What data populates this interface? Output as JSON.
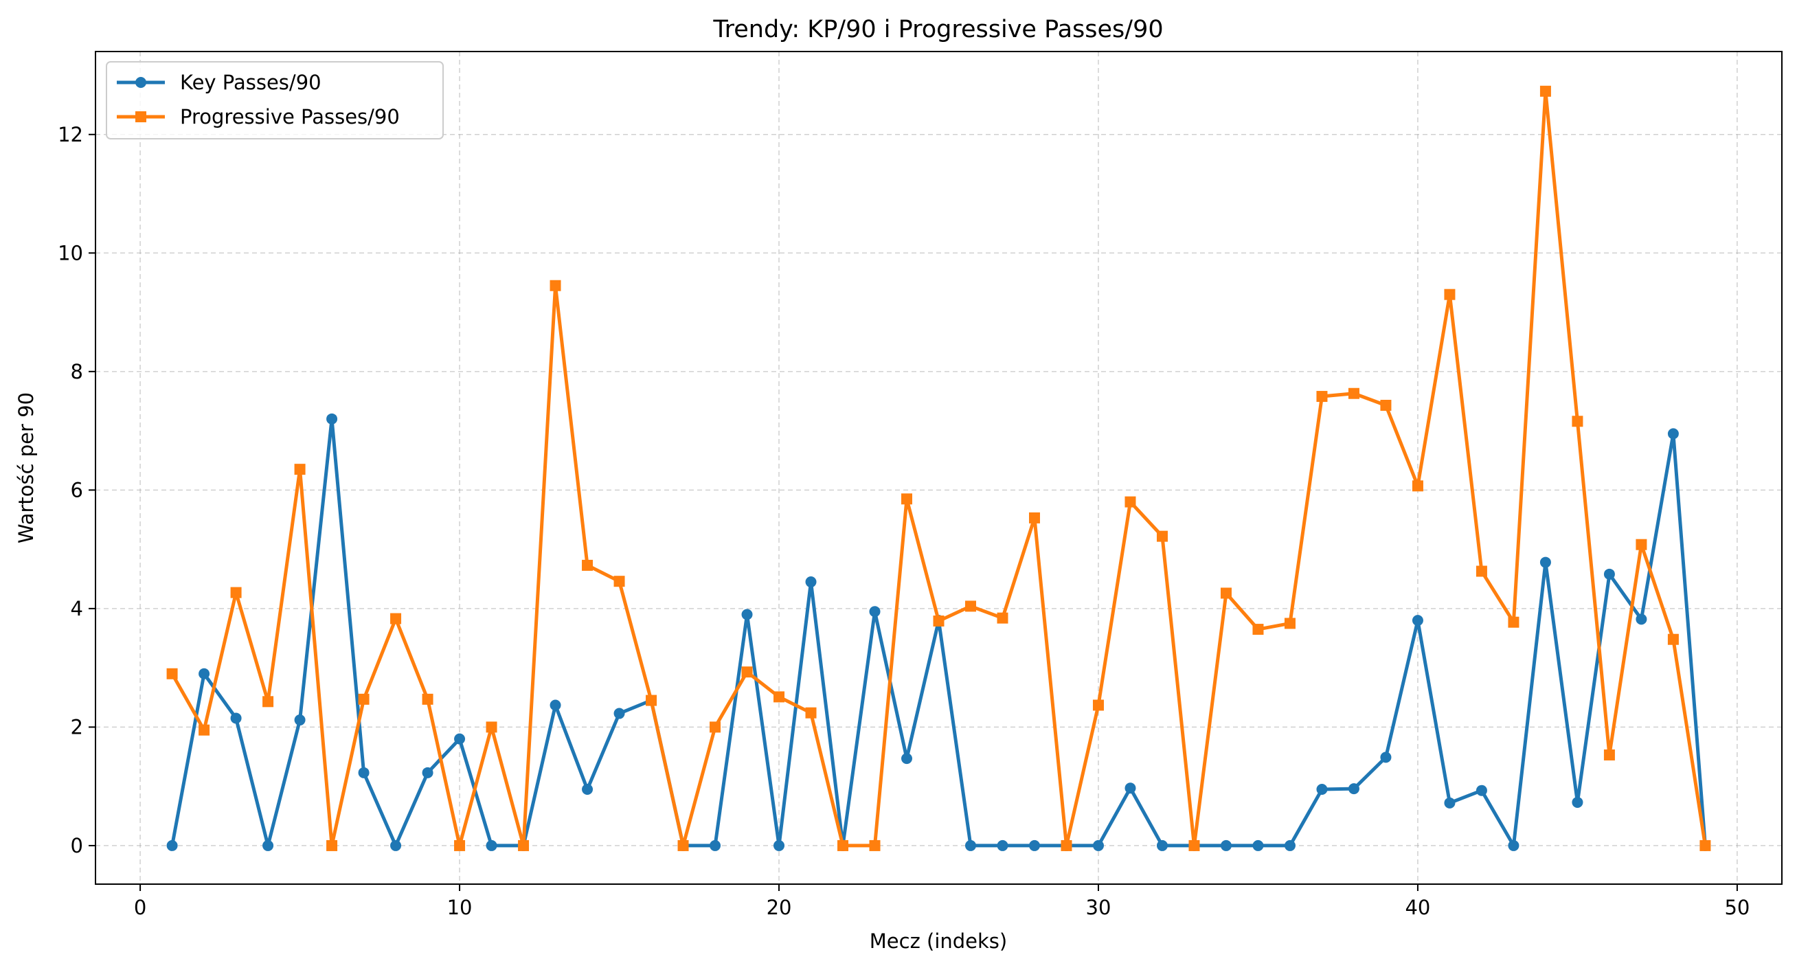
{
  "chart_data": {
    "type": "line",
    "title": "Trendy: KP/90 i Progressive Passes/90",
    "xlabel": "Mecz (indeks)",
    "ylabel": "Wartość per 90",
    "xlim": [
      -1.4,
      51.4
    ],
    "ylim": [
      -0.65,
      13.4
    ],
    "xticks": [
      0,
      10,
      20,
      30,
      40,
      50
    ],
    "yticks": [
      0,
      2,
      4,
      6,
      8,
      10,
      12
    ],
    "grid": true,
    "legend": "top-left",
    "x": [
      1,
      2,
      3,
      4,
      5,
      6,
      7,
      8,
      9,
      10,
      11,
      12,
      13,
      14,
      15,
      16,
      17,
      18,
      19,
      20,
      21,
      22,
      23,
      24,
      25,
      26,
      27,
      28,
      29,
      30,
      31,
      32,
      33,
      34,
      35,
      36,
      37,
      38,
      39,
      40,
      41,
      42,
      43,
      44,
      45,
      46,
      47,
      48,
      49
    ],
    "series": [
      {
        "name": "Key Passes/90",
        "color": "#1f77b4",
        "marker": "circle",
        "values": [
          0,
          2.9,
          2.15,
          0,
          2.12,
          7.2,
          1.23,
          0,
          1.23,
          1.8,
          0,
          0,
          2.37,
          0.95,
          2.23,
          2.45,
          0,
          0,
          3.9,
          0,
          4.45,
          0,
          3.95,
          1.47,
          3.8,
          0,
          0,
          0,
          0,
          0,
          0.97,
          0,
          0,
          0,
          0,
          0,
          0.95,
          0.96,
          1.49,
          3.8,
          0.72,
          0.93,
          0,
          4.78,
          0.73,
          4.58,
          3.82,
          6.95,
          0
        ]
      },
      {
        "name": "Progressive Passes/90",
        "color": "#ff7f0e",
        "marker": "square",
        "values": [
          2.9,
          1.95,
          4.27,
          2.43,
          6.35,
          0,
          2.47,
          3.83,
          2.47,
          0,
          2.0,
          0,
          9.45,
          4.73,
          4.46,
          2.45,
          0,
          2.0,
          2.93,
          2.51,
          2.24,
          0,
          0,
          5.85,
          3.79,
          4.04,
          3.84,
          5.53,
          0,
          2.37,
          5.8,
          5.22,
          0,
          4.26,
          3.65,
          3.75,
          7.58,
          7.63,
          7.43,
          6.07,
          9.3,
          4.63,
          3.77,
          12.73,
          7.16,
          1.53,
          5.08,
          3.48,
          0
        ]
      }
    ]
  }
}
